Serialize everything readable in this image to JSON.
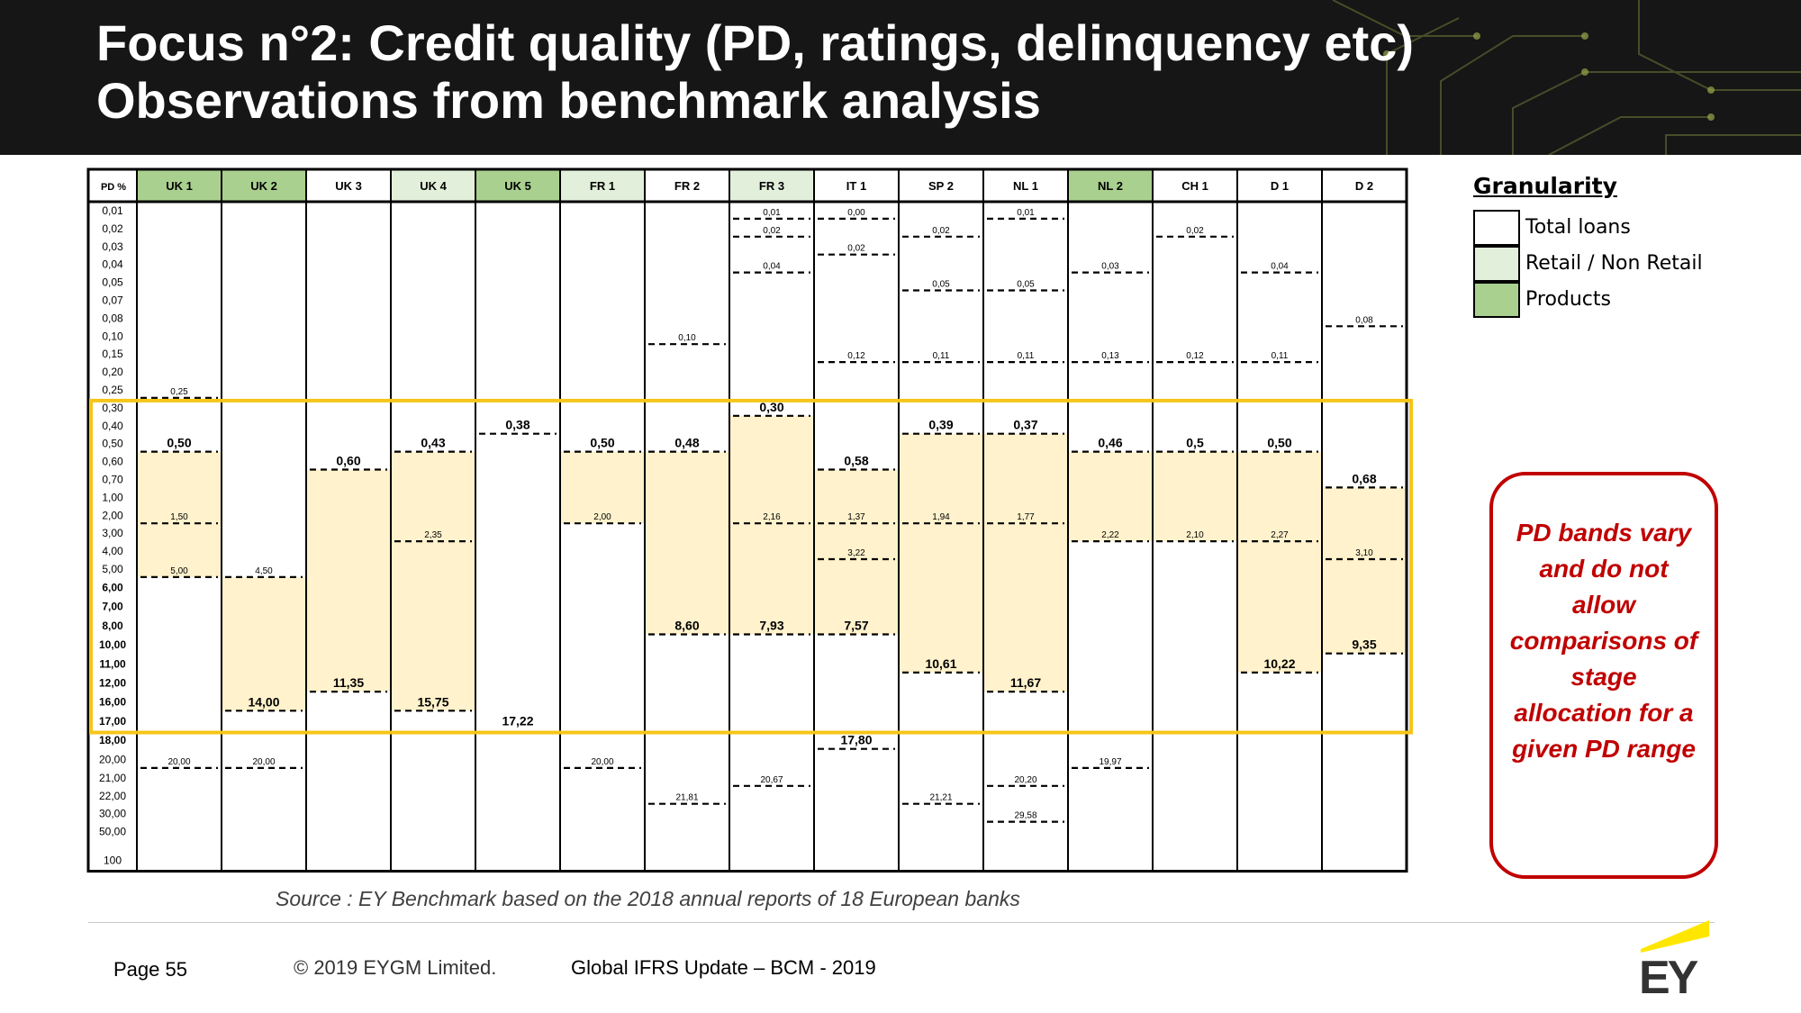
{
  "header": {
    "title_line1": "Focus n°2: Credit quality (PD, ratings, delinquency etc)",
    "title_line2": "Observations from benchmark analysis"
  },
  "table": {
    "pd_header": "PD %",
    "pd_rows": [
      "0,01",
      "0,02",
      "0,03",
      "0,04",
      "0,05",
      "0,07",
      "0,08",
      "0,10",
      "0,15",
      "0,20",
      "0,25",
      "0,30",
      "0,40",
      "0,50",
      "0,60",
      "0,70",
      "1,00",
      "2,00",
      "3,00",
      "4,00",
      "5,00",
      "6,00",
      "7,00",
      "8,00",
      "10,00",
      "11,00",
      "12,00",
      "16,00",
      "17,00",
      "18,00",
      "20,00",
      "21,00",
      "22,00",
      "30,00",
      "50,00",
      "100"
    ],
    "banks": [
      {
        "name": "UK 1",
        "granularity": "products",
        "bounds": [
          {
            "v": "0,25",
            "row": 10
          },
          {
            "v": "0,50",
            "row": 13,
            "big": true
          },
          {
            "v": "1,50",
            "row": 17
          },
          {
            "v": "5,00",
            "row": 20
          },
          {
            "v": "20,00",
            "row": 30
          }
        ],
        "stage2": [
          13,
          20
        ]
      },
      {
        "name": "UK 2",
        "granularity": "products",
        "bounds": [
          {
            "v": "4,50",
            "row": 20
          },
          {
            "v": "14,00",
            "row": 27,
            "big": true
          },
          {
            "v": "20,00",
            "row": 30
          }
        ],
        "stage2": [
          20,
          27
        ]
      },
      {
        "name": "UK 3",
        "granularity": "total",
        "bounds": [
          {
            "v": "0,60",
            "row": 14,
            "big": true
          },
          {
            "v": "11,35",
            "row": 26,
            "big": true
          }
        ],
        "stage2": [
          14,
          26
        ]
      },
      {
        "name": "UK 4",
        "granularity": "retail",
        "bounds": [
          {
            "v": "0,43",
            "row": 13,
            "big": true
          },
          {
            "v": "2,35",
            "row": 18
          },
          {
            "v": "15,75",
            "row": 27,
            "big": true
          }
        ],
        "stage2": [
          13,
          27
        ]
      },
      {
        "name": "UK 5",
        "granularity": "products",
        "bounds": [
          {
            "v": "0,38",
            "row": 12,
            "big": true
          },
          {
            "v": "17,22",
            "row": 28,
            "big": true,
            "solid": true
          }
        ],
        "stage2": null
      },
      {
        "name": "FR 1",
        "granularity": "retail",
        "bounds": [
          {
            "v": "0,50",
            "row": 13,
            "big": true
          },
          {
            "v": "2,00",
            "row": 17
          },
          {
            "v": "20,00",
            "row": 30
          }
        ],
        "stage2": [
          13,
          17
        ]
      },
      {
        "name": "FR 2",
        "granularity": "total",
        "bounds": [
          {
            "v": "0,10",
            "row": 7
          },
          {
            "v": "0,48",
            "row": 13,
            "big": true
          },
          {
            "v": "8,60",
            "row": 23,
            "big": true
          },
          {
            "v": "21,81",
            "row": 32
          }
        ],
        "stage2": [
          13,
          23
        ]
      },
      {
        "name": "FR 3",
        "granularity": "retail",
        "bounds": [
          {
            "v": "0,01",
            "row": 0
          },
          {
            "v": "0,02",
            "row": 1
          },
          {
            "v": "0,04",
            "row": 3
          },
          {
            "v": "0,30",
            "row": 11,
            "big": true
          },
          {
            "v": "2,16",
            "row": 17
          },
          {
            "v": "7,93",
            "row": 23,
            "big": true
          },
          {
            "v": "20,67",
            "row": 31
          }
        ],
        "stage2": [
          11,
          23
        ]
      },
      {
        "name": "IT 1",
        "granularity": "total",
        "bounds": [
          {
            "v": "0,00",
            "row": 0
          },
          {
            "v": "0,02",
            "row": 2
          },
          {
            "v": "0,12",
            "row": 8
          },
          {
            "v": "0,58",
            "row": 14,
            "big": true
          },
          {
            "v": "1,37",
            "row": 17
          },
          {
            "v": "3,22",
            "row": 19
          },
          {
            "v": "7,57",
            "row": 23,
            "big": true
          },
          {
            "v": "17,80",
            "row": 29,
            "big": true
          }
        ],
        "stage2": [
          14,
          23
        ]
      },
      {
        "name": "SP 2",
        "granularity": "total",
        "bounds": [
          {
            "v": "0,02",
            "row": 1
          },
          {
            "v": "0,05",
            "row": 4
          },
          {
            "v": "0,11",
            "row": 8
          },
          {
            "v": "0,39",
            "row": 12,
            "big": true
          },
          {
            "v": "1,94",
            "row": 17
          },
          {
            "v": "10,61",
            "row": 25,
            "big": true
          },
          {
            "v": "21,21",
            "row": 32
          }
        ],
        "stage2": [
          12,
          25
        ]
      },
      {
        "name": "NL 1",
        "granularity": "total",
        "bounds": [
          {
            "v": "0,01",
            "row": 0
          },
          {
            "v": "0,05",
            "row": 4
          },
          {
            "v": "0,11",
            "row": 8
          },
          {
            "v": "0,37",
            "row": 12,
            "big": true
          },
          {
            "v": "1,77",
            "row": 17
          },
          {
            "v": "11,67",
            "row": 26,
            "big": true
          },
          {
            "v": "20,20",
            "row": 31
          },
          {
            "v": "29,58",
            "row": 33
          }
        ],
        "stage2": [
          12,
          26
        ]
      },
      {
        "name": "NL 2",
        "granularity": "products",
        "bounds": [
          {
            "v": "0,03",
            "row": 3
          },
          {
            "v": "0,13",
            "row": 8
          },
          {
            "v": "0,46",
            "row": 13,
            "big": true
          },
          {
            "v": "2,22",
            "row": 18
          },
          {
            "v": "19,97",
            "row": 30
          }
        ],
        "stage2": [
          13,
          18
        ]
      },
      {
        "name": "CH 1",
        "granularity": "total",
        "bounds": [
          {
            "v": "0,02",
            "row": 1
          },
          {
            "v": "0,12",
            "row": 8
          },
          {
            "v": "0,5",
            "row": 13,
            "big": true
          },
          {
            "v": "2,10",
            "row": 18
          }
        ],
        "stage2": [
          13,
          18
        ]
      },
      {
        "name": "D 1",
        "granularity": "total",
        "bounds": [
          {
            "v": "0,04",
            "row": 3
          },
          {
            "v": "0,11",
            "row": 8
          },
          {
            "v": "0,50",
            "row": 13,
            "big": true
          },
          {
            "v": "2,27",
            "row": 18
          },
          {
            "v": "10,22",
            "row": 25,
            "big": true
          }
        ],
        "stage2": [
          13,
          25
        ]
      },
      {
        "name": "D 2",
        "granularity": "total",
        "bounds": [
          {
            "v": "0,08",
            "row": 6
          },
          {
            "v": "0,68",
            "row": 15,
            "big": true
          },
          {
            "v": "3,10",
            "row": 19
          },
          {
            "v": "9,35",
            "row": 24,
            "big": true
          }
        ],
        "stage2": [
          15,
          24
        ]
      }
    ]
  },
  "colors": {
    "total": "#ffffff",
    "retail": "#e2efda",
    "products": "#a9d08e",
    "stage2_fill": "#fff2cc",
    "highlight_box": "#f5c518",
    "callout": "#c00000"
  },
  "legend": {
    "title": "Granularity",
    "items": [
      {
        "label": "Total loans",
        "color": "#ffffff"
      },
      {
        "label": "Retail / Non Retail",
        "color": "#e2efda"
      },
      {
        "label": "Products",
        "color": "#a9d08e"
      }
    ]
  },
  "callout": {
    "text": "PD bands vary and do not allow comparisons of stage allocation for a given PD range"
  },
  "source": "Source : EY Benchmark based on the 2018 annual reports of 18 European banks",
  "footer": {
    "page": "Page 55",
    "copyright": "© 2019 EYGM Limited.",
    "event": "Global IFRS Update – BCM - 2019"
  },
  "logo": {
    "text": "EY"
  }
}
